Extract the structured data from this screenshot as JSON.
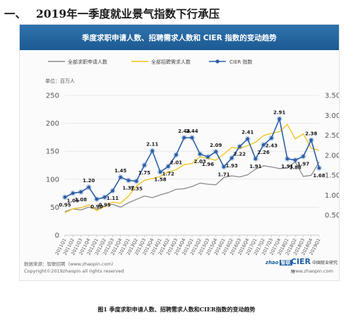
{
  "heading": {
    "number": "一、",
    "title": "2019年一季度就业景气指数下行承压"
  },
  "panel": {
    "banner_title": "季度求职申请人数、招聘需求人数和 CIER 指数的变动趋势",
    "unit_label": "单位：百万人",
    "source": "数据来源：智联招聘（www.zhaopin.com）",
    "copyright": "Copyright©2019zhaopin all rights reserved",
    "site": "www.zhaopin.com",
    "logo_zhaopin_text": "zhao",
    "logo_zhaopin_badge": "智联",
    "logo_cier_text": "CIER",
    "logo_cier_sub": "中国就业研究所"
  },
  "caption": "图1 季度求职申请人数、招聘需求人数和CIER指数的变动趋势",
  "colors": {
    "applicants": "#8c8c8c",
    "demand": "#f2c21b",
    "cier": "#2b5ea8",
    "banner": "#1c5a93",
    "grid": "#dcdcdc"
  },
  "chart_data": {
    "type": "line",
    "categories": [
      "2011Q1",
      "2011Q2",
      "2011Q3",
      "2011Q4",
      "2012Q1",
      "2012Q2",
      "2012Q3",
      "2012Q4",
      "2013Q1",
      "2013Q2",
      "2013Q3",
      "2013Q4",
      "2014Q1",
      "2014Q2",
      "2014Q3",
      "2014Q4",
      "2015Q1",
      "2015Q2",
      "2015Q3",
      "2015Q4",
      "2016Q1",
      "2016Q2",
      "2016Q3",
      "2016Q4",
      "2017Q1",
      "2017Q2",
      "2017Q3",
      "2017Q4",
      "2018Q1",
      "2018Q2",
      "2018Q3",
      "2018Q4",
      "2019Q1"
    ],
    "y_left_ticks": [
      "0",
      "50",
      "100",
      "150",
      "200",
      "250"
    ],
    "y_right_ticks": [
      "0.50",
      "1.00",
      "1.50",
      "2.00",
      "2.50",
      "3.00",
      "3.50"
    ],
    "ylim_left": [
      0,
      250
    ],
    "ylim_right": [
      0,
      3.5
    ],
    "legend_position": "top",
    "grid": true,
    "series": [
      {
        "name": "全部求职申请人数",
        "axis": "left",
        "values": [
          42,
          47,
          45,
          50,
          46,
          52,
          55,
          50,
          58,
          64,
          70,
          67,
          72,
          76,
          82,
          83,
          87,
          93,
          91,
          90,
          103,
          106,
          104,
          108,
          118,
          124,
          122,
          119,
          120,
          131,
          105,
          107,
          131
        ]
      },
      {
        "name": "全部招聘需求人数",
        "axis": "left",
        "values": [
          40,
          47,
          49,
          54,
          44,
          51,
          59,
          57,
          70,
          88,
          98,
          101,
          105,
          113,
          117,
          126,
          128,
          140,
          137,
          134,
          145,
          157,
          155,
          160,
          166,
          178,
          182,
          185,
          198,
          172,
          181,
          155,
          152
        ]
      },
      {
        "name": "CIER 指数",
        "axis": "right",
        "values": [
          0.95,
          1.05,
          1.08,
          1.2,
          0.9,
          0.95,
          1.11,
          1.45,
          1.37,
          1.35,
          1.75,
          2.11,
          1.58,
          1.72,
          2.01,
          2.44,
          2.44,
          2.03,
          1.96,
          2.09,
          1.71,
          1.93,
          2.22,
          2.41,
          1.91,
          2.26,
          2.43,
          2.91,
          1.91,
          1.88,
          1.97,
          2.38,
          1.68
        ],
        "labels": [
          "0.95",
          "1.05",
          "1.08",
          "1.20",
          "0.90",
          "0.95",
          "1.11",
          "1.45",
          "1.37",
          "1.35",
          "1.75",
          "2.11",
          "1.58",
          "1.72",
          "2.01",
          "2.44",
          "2.44",
          "2.03",
          "1.96",
          "2.09",
          "1.71",
          "1.93",
          "2.22",
          "2.41",
          "1.91",
          "2.26",
          "2.43",
          "2.91",
          "1.91",
          "1.88",
          "1.97",
          "2.38",
          "1.68"
        ]
      }
    ]
  }
}
